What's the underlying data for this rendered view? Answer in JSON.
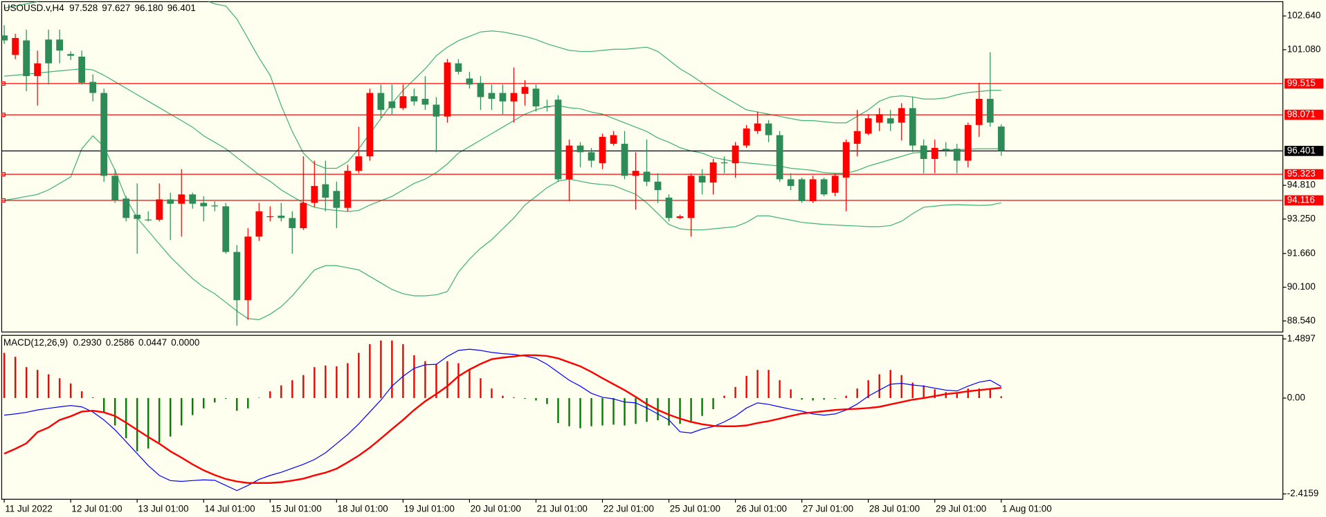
{
  "chart_data": [
    {
      "type": "candlestick",
      "title": "USOUSD.v,H4",
      "readout": [
        97.528,
        97.627,
        {
          "value": 96.18,
          "label": "96.180"
        },
        96.401
      ],
      "categories": [
        "11 Jul 2022",
        null,
        null,
        null,
        null,
        null,
        "12 Jul 01:00",
        null,
        null,
        null,
        null,
        null,
        "13 Jul 01:00",
        null,
        null,
        null,
        null,
        null,
        "14 Jul 01:00",
        null,
        null,
        null,
        null,
        null,
        "15 Jul 01:00",
        null,
        null,
        null,
        null,
        null,
        "18 Jul 01:00",
        null,
        null,
        null,
        null,
        null,
        "19 Jul 01:00",
        null,
        null,
        null,
        null,
        null,
        "20 Jul 01:00",
        null,
        null,
        null,
        null,
        null,
        "21 Jul 01:00",
        null,
        null,
        null,
        null,
        null,
        "22 Jul 01:00",
        null,
        null,
        null,
        null,
        null,
        "25 Jul 01:00",
        null,
        null,
        null,
        null,
        null,
        "26 Jul 01:00",
        null,
        null,
        null,
        null,
        null,
        "27 Jul 01:00",
        null,
        null,
        null,
        null,
        null,
        "28 Jul 01:00",
        null,
        null,
        null,
        null,
        null,
        "29 Jul 01:00",
        null,
        null,
        null,
        null,
        null,
        "1 Aug 01:00"
      ],
      "open": [
        101.74,
        100.84,
        101.51,
        99.86,
        101.55,
        101.55,
        100.88,
        100.76,
        99.59,
        99.08,
        95.25,
        94.2,
        93.45,
        93.23,
        93.22,
        94.16,
        93.96,
        94.39,
        94.0,
        93.88,
        93.84,
        91.73,
        89.5,
        92.44,
        93.34,
        93.41,
        93.3,
        92.83,
        94.0,
        94.86,
        94.55,
        93.77,
        95.48,
        96.15,
        99.08,
        98.69,
        98.38,
        98.93,
        98.81,
        98.54,
        97.99,
        100.45,
        99.75,
        99.55,
        99.08,
        99.08,
        98.69,
        99.04,
        99.28,
        98.46,
        98.77,
        95.09,
        96.65,
        96.34,
        95.83,
        96.73,
        96.73,
        95.25,
        95.44,
        94.98,
        94.24,
        93.3,
        93.3,
        95.25,
        94.94,
        95.87,
        95.83,
        96.65,
        97.32,
        97.67,
        97.13,
        95.09,
        95.09,
        94.08,
        95.09,
        94.47,
        95.17,
        96.73,
        97.2,
        97.71,
        97.91,
        97.71,
        98.38,
        96.65,
        96.03,
        96.5,
        96.5,
        95.95,
        97.6,
        98.81,
        97.528
      ],
      "high": [
        102.21,
        101.82,
        102.01,
        101.04,
        102.01,
        102.01,
        101.0,
        101.04,
        99.94,
        99.28,
        95.56,
        94.31,
        94.9,
        93.61,
        94.9,
        94.47,
        95.56,
        94.47,
        94.31,
        94.08,
        94.0,
        92.05,
        92.83,
        94.0,
        93.84,
        94.0,
        93.61,
        96.15,
        95.95,
        95.95,
        94.98,
        95.76,
        97.52,
        99.28,
        99.47,
        99.47,
        99.47,
        99.28,
        99.86,
        98.89,
        100.65,
        100.65,
        100.06,
        99.86,
        99.47,
        99.47,
        100.26,
        99.67,
        99.47,
        98.77,
        98.97,
        96.93,
        96.81,
        96.54,
        97.2,
        97.32,
        97.32,
        96.34,
        96.93,
        95.37,
        94.39,
        93.45,
        95.37,
        95.56,
        96.03,
        96.15,
        96.81,
        97.6,
        98.22,
        97.83,
        97.32,
        95.37,
        95.17,
        95.25,
        95.17,
        95.37,
        96.93,
        98.3,
        98.1,
        98.38,
        98.3,
        98.61,
        98.89,
        96.93,
        96.93,
        96.81,
        96.73,
        97.71,
        99.55,
        100.96,
        97.627
      ],
      "low": [
        101.35,
        100.64,
        99.16,
        98.5,
        99.47,
        100.45,
        100.6,
        99.47,
        98.69,
        94.97,
        94.0,
        93.14,
        91.65,
        93.14,
        93.14,
        92.28,
        92.44,
        93.73,
        93.14,
        93.61,
        91.65,
        88.33,
        88.6,
        92.24,
        93.14,
        93.14,
        91.65,
        92.75,
        93.8,
        93.61,
        92.83,
        93.61,
        95.37,
        95.95,
        97.91,
        98.1,
        98.3,
        98.5,
        98.3,
        96.34,
        97.71,
        99.94,
        99.28,
        98.3,
        98.3,
        98.1,
        97.71,
        98.5,
        98.22,
        98.22,
        94.97,
        94.08,
        95.64,
        95.64,
        95.56,
        96.65,
        95.09,
        93.69,
        94.78,
        93.99,
        93.14,
        93.25,
        92.44,
        94.39,
        94.39,
        95.37,
        95.17,
        96.54,
        97.2,
        96.81,
        94.97,
        94.59,
        94.0,
        94.0,
        94.31,
        94.31,
        93.61,
        96.15,
        97.13,
        97.32,
        97.32,
        96.89,
        96.34,
        95.37,
        95.37,
        96.15,
        95.37,
        95.64,
        97.05,
        97.52,
        96.18
      ],
      "close": [
        101.51,
        101.62,
        99.86,
        100.45,
        100.45,
        101.04,
        100.8,
        99.55,
        99.08,
        95.25,
        94.12,
        93.3,
        93.26,
        93.22,
        94.16,
        93.96,
        94.39,
        93.96,
        93.84,
        93.84,
        91.73,
        89.5,
        92.44,
        93.61,
        93.38,
        93.3,
        92.83,
        94.0,
        94.78,
        94.24,
        93.77,
        95.48,
        96.15,
        99.08,
        98.3,
        98.38,
        98.93,
        98.69,
        98.54,
        97.99,
        100.49,
        100.06,
        99.47,
        98.89,
        98.81,
        98.69,
        99.08,
        99.36,
        98.46,
        98.42,
        95.09,
        96.65,
        96.34,
        95.95,
        97.05,
        97.13,
        95.25,
        95.48,
        94.98,
        94.59,
        93.3,
        93.38,
        95.25,
        94.94,
        95.87,
        95.83,
        96.65,
        97.44,
        97.67,
        97.13,
        95.09,
        94.78,
        94.08,
        95.09,
        94.39,
        95.25,
        96.81,
        97.32,
        97.91,
        98.1,
        97.67,
        98.38,
        96.65,
        96.03,
        96.54,
        96.42,
        95.95,
        97.6,
        98.81,
        97.71,
        96.401
      ],
      "up_color": "#ff0000",
      "down_color": "#2e8b57",
      "bands": [
        {
          "color": "#3cb371",
          "values": [
            103.0,
            103.1,
            103.2,
            103.3,
            103.4,
            103.5,
            103.6,
            103.7,
            103.8,
            103.9,
            104.0,
            104.0,
            104.0,
            103.9,
            103.8,
            103.7,
            103.6,
            103.5,
            103.4,
            103.2,
            103.1,
            102.5,
            101.6,
            100.7,
            99.9,
            98.5,
            97.3,
            96.3,
            95.8,
            95.6,
            95.6,
            95.9,
            96.5,
            97.2,
            97.9,
            98.6,
            99.2,
            99.7,
            100.2,
            100.8,
            101.2,
            101.5,
            101.7,
            101.9,
            101.95,
            101.9,
            101.8,
            101.7,
            101.55,
            101.35,
            101.2,
            101.05,
            101.0,
            101.0,
            101.05,
            101.1,
            101.1,
            101.15,
            101.2,
            101.0,
            100.6,
            100.2,
            99.9,
            99.55,
            99.2,
            98.9,
            98.6,
            98.3,
            98.2,
            98.1,
            98.0,
            97.9,
            97.8,
            97.8,
            97.75,
            97.7,
            97.7,
            98.0,
            98.3,
            98.7,
            98.9,
            98.95,
            98.9,
            98.8,
            98.8,
            98.85,
            99.0,
            99.1,
            99.15,
            99.2,
            99.2
          ]
        },
        {
          "color": "#3cb371",
          "values": [
            99.86,
            99.9,
            99.95,
            100.0,
            100.05,
            100.1,
            100.15,
            100.2,
            100.15,
            99.9,
            99.6,
            99.3,
            99.0,
            98.7,
            98.4,
            98.1,
            97.8,
            97.5,
            97.1,
            96.8,
            96.5,
            96.1,
            95.7,
            95.3,
            95.0,
            94.6,
            94.3,
            94.0,
            93.8,
            93.7,
            93.65,
            93.6,
            93.65,
            93.9,
            94.1,
            94.3,
            94.6,
            94.9,
            95.1,
            95.4,
            95.8,
            96.3,
            96.6,
            96.9,
            97.2,
            97.5,
            97.8,
            98.1,
            98.3,
            98.45,
            98.5,
            98.4,
            98.35,
            98.2,
            98.1,
            97.9,
            97.7,
            97.5,
            97.3,
            97.0,
            96.8,
            96.55,
            96.4,
            96.3,
            96.1,
            96.0,
            95.9,
            95.85,
            95.8,
            95.75,
            95.7,
            95.6,
            95.55,
            95.5,
            95.4,
            95.37,
            95.37,
            95.5,
            95.7,
            95.85,
            96.0,
            96.15,
            96.3,
            96.35,
            96.4,
            96.45,
            96.46,
            96.48,
            96.5,
            96.5,
            96.5
          ]
        },
        {
          "color": "#3cb371",
          "values": [
            94.12,
            94.2,
            94.3,
            94.39,
            94.6,
            94.9,
            95.2,
            96.5,
            97.1,
            96.6,
            95.5,
            94.2,
            93.3,
            92.7,
            92.1,
            91.5,
            91.0,
            90.5,
            90.1,
            89.8,
            89.4,
            89.0,
            88.65,
            88.6,
            88.85,
            89.2,
            89.7,
            90.3,
            90.9,
            91.1,
            91.1,
            91.0,
            90.9,
            90.6,
            90.3,
            90.0,
            89.8,
            89.7,
            89.7,
            89.75,
            89.9,
            90.8,
            91.4,
            91.9,
            92.3,
            92.8,
            93.3,
            93.9,
            94.3,
            94.7,
            95.0,
            95.1,
            95.0,
            94.9,
            94.85,
            94.8,
            94.6,
            94.4,
            94.0,
            93.5,
            93.0,
            92.8,
            92.75,
            92.75,
            92.8,
            92.85,
            92.9,
            93.1,
            93.4,
            93.4,
            93.3,
            93.2,
            93.1,
            93.05,
            93.0,
            92.98,
            92.95,
            92.93,
            92.9,
            92.9,
            92.95,
            93.15,
            93.5,
            93.8,
            93.85,
            93.9,
            93.92,
            93.9,
            93.88,
            93.9,
            94.0
          ]
        }
      ],
      "levels": [
        99.515,
        98.071,
        95.323,
        94.116
      ],
      "level_color": "#ff0000",
      "last_price": 96.401,
      "last_price_color": "#000000",
      "ylim": [
        88.03,
        103.3
      ],
      "yticks": [
        {
          "value": 102.64,
          "label": "102.640"
        },
        {
          "value": 101.08,
          "label": "101.080"
        },
        {
          "value": 94.81,
          "label": "94.810"
        },
        {
          "value": 93.25,
          "label": "93.250"
        },
        {
          "value": 91.66,
          "label": "91.660"
        },
        {
          "value": 90.1,
          "label": "90.100"
        },
        {
          "value": 88.54,
          "label": "88.540"
        }
      ]
    },
    {
      "type": "macd",
      "title": "MACD(12,26,9)",
      "readout": [
        {
          "value": 0.293,
          "label": "0.2930"
        },
        0.2586,
        0.0447,
        {
          "value": 0,
          "label": "0.0000"
        }
      ],
      "histogram": {
        "up_color": "#ff0000",
        "down_color": "#008000",
        "values": [
          1.14,
          1.04,
          0.78,
          0.71,
          0.6,
          0.5,
          0.37,
          0.17,
          0.02,
          -0.37,
          -0.69,
          -1.01,
          -1.34,
          -1.27,
          -1.12,
          -0.97,
          -0.69,
          -0.43,
          -0.26,
          -0.11,
          -0.02,
          -0.32,
          -0.26,
          0.01,
          0.17,
          0.32,
          0.45,
          0.58,
          0.78,
          0.82,
          0.8,
          0.88,
          1.14,
          1.36,
          1.45,
          1.45,
          1.36,
          1.08,
          0.93,
          0.86,
          0.93,
          0.88,
          0.71,
          0.5,
          0.24,
          0.06,
          0.02,
          -0.02,
          -0.06,
          -0.15,
          -0.63,
          -0.71,
          -0.76,
          -0.71,
          -0.69,
          -0.67,
          -0.69,
          -0.65,
          -0.6,
          -0.56,
          -0.69,
          -0.65,
          -0.58,
          -0.45,
          -0.28,
          0.06,
          0.28,
          0.56,
          0.71,
          0.71,
          0.45,
          0.22,
          -0.04,
          -0.06,
          -0.04,
          -0.02,
          0.06,
          0.24,
          0.45,
          0.6,
          0.71,
          0.58,
          0.39,
          0.32,
          0.22,
          0.15,
          0.11,
          0.24,
          0.24,
          0.22,
          0.0447
        ]
      },
      "series": [
        {
          "color": "#0000ff",
          "width": 1,
          "values": [
            -0.43,
            -0.4,
            -0.36,
            -0.3,
            -0.26,
            -0.22,
            -0.19,
            -0.22,
            -0.35,
            -0.55,
            -0.8,
            -1.1,
            -1.4,
            -1.7,
            -1.95,
            -2.08,
            -2.1,
            -2.08,
            -2.06,
            -2.07,
            -2.2,
            -2.33,
            -2.2,
            -2.05,
            -1.95,
            -1.87,
            -1.77,
            -1.67,
            -1.55,
            -1.38,
            -1.15,
            -0.92,
            -0.65,
            -0.35,
            -0.05,
            0.3,
            0.55,
            0.75,
            0.84,
            0.85,
            1.05,
            1.2,
            1.23,
            1.2,
            1.15,
            1.12,
            1.1,
            1.06,
            1.0,
            0.85,
            0.65,
            0.45,
            0.3,
            0.12,
            0.02,
            -0.02,
            -0.1,
            -0.12,
            -0.25,
            -0.4,
            -0.55,
            -0.85,
            -0.88,
            -0.78,
            -0.72,
            -0.6,
            -0.45,
            -0.25,
            -0.12,
            -0.16,
            -0.22,
            -0.28,
            -0.33,
            -0.4,
            -0.43,
            -0.4,
            -0.3,
            -0.15,
            0.05,
            0.2,
            0.35,
            0.37,
            0.33,
            0.3,
            0.25,
            0.2,
            0.18,
            0.3,
            0.4,
            0.45,
            0.293
          ]
        },
        {
          "color": "#ff0000",
          "width": 2,
          "values": [
            -1.4,
            -1.28,
            -1.14,
            -0.86,
            -0.74,
            -0.55,
            -0.46,
            -0.34,
            -0.32,
            -0.36,
            -0.45,
            -0.62,
            -0.8,
            -0.98,
            -1.15,
            -1.34,
            -1.5,
            -1.67,
            -1.82,
            -1.94,
            -2.04,
            -2.1,
            -2.14,
            -2.14,
            -2.14,
            -2.12,
            -2.08,
            -2.03,
            -1.95,
            -1.88,
            -1.78,
            -1.62,
            -1.45,
            -1.25,
            -1.02,
            -0.78,
            -0.55,
            -0.3,
            -0.08,
            0.1,
            0.3,
            0.55,
            0.72,
            0.86,
            0.98,
            1.02,
            1.05,
            1.08,
            1.08,
            1.06,
            1.0,
            0.9,
            0.8,
            0.66,
            0.5,
            0.35,
            0.2,
            0.03,
            -0.15,
            -0.3,
            -0.42,
            -0.52,
            -0.6,
            -0.66,
            -0.7,
            -0.71,
            -0.71,
            -0.69,
            -0.63,
            -0.58,
            -0.52,
            -0.45,
            -0.39,
            -0.36,
            -0.33,
            -0.3,
            -0.28,
            -0.27,
            -0.25,
            -0.22,
            -0.16,
            -0.1,
            -0.04,
            0.0,
            0.05,
            0.1,
            0.13,
            0.17,
            0.2,
            0.23,
            0.2586
          ]
        }
      ],
      "ylim": [
        -2.55,
        1.58
      ],
      "yticks": [
        1.4897,
        {
          "value": 0,
          "label": "0.00"
        },
        -2.4159
      ]
    }
  ]
}
